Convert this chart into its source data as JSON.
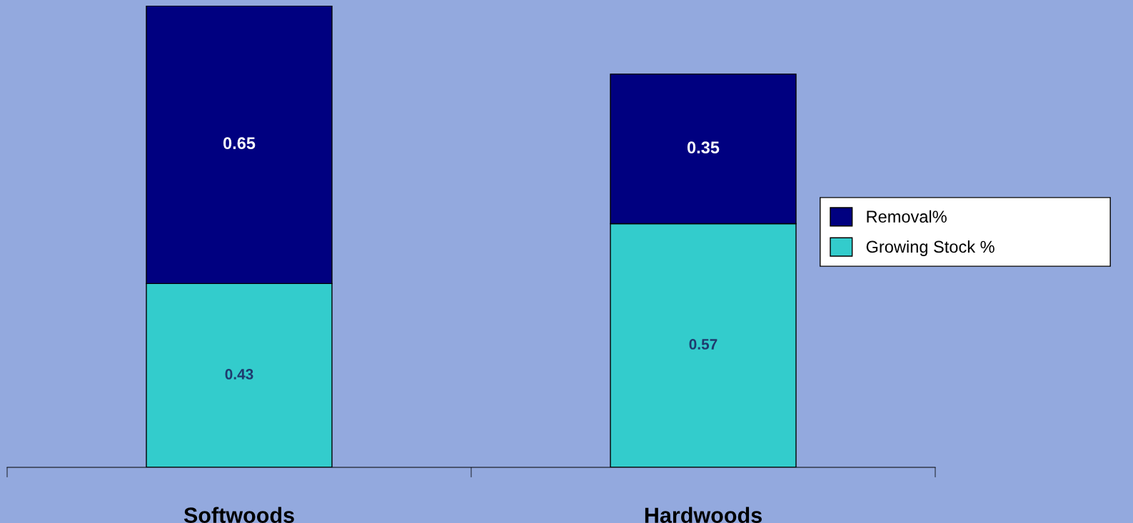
{
  "chart_data": {
    "type": "bar",
    "stacked": true,
    "categories": [
      "Softwoods",
      "Hardwoods"
    ],
    "series": [
      {
        "name": "Growing Stock %",
        "color": "#33cccc",
        "values": [
          0.43,
          0.57
        ]
      },
      {
        "name": "Removal%",
        "color": "#000080",
        "values": [
          0.65,
          0.35
        ]
      }
    ],
    "data_labels": true,
    "legend": "right",
    "grid": false
  }
}
